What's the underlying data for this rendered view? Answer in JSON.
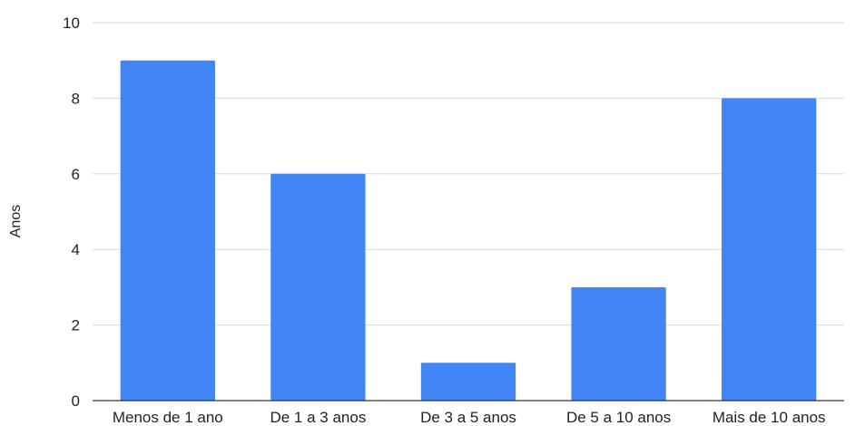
{
  "chart_data": {
    "type": "bar",
    "title": "",
    "xlabel": "",
    "ylabel": "Anos",
    "categories": [
      "Menos de 1 ano",
      "De 1 a 3 anos",
      "De 3 a 5 anos",
      "De 5 a 10 anos",
      "Mais de 10 anos"
    ],
    "series": [
      {
        "values": [
          9,
          6,
          1,
          3,
          8
        ]
      }
    ],
    "ylim": [
      0,
      10
    ],
    "yticks": [
      "0",
      "2",
      "4",
      "6",
      "8",
      "10"
    ],
    "grid": true,
    "legend": "none",
    "colors": {
      "bar": "#4285f4",
      "grid": "#d9d9d9",
      "axis": "#333333"
    }
  }
}
